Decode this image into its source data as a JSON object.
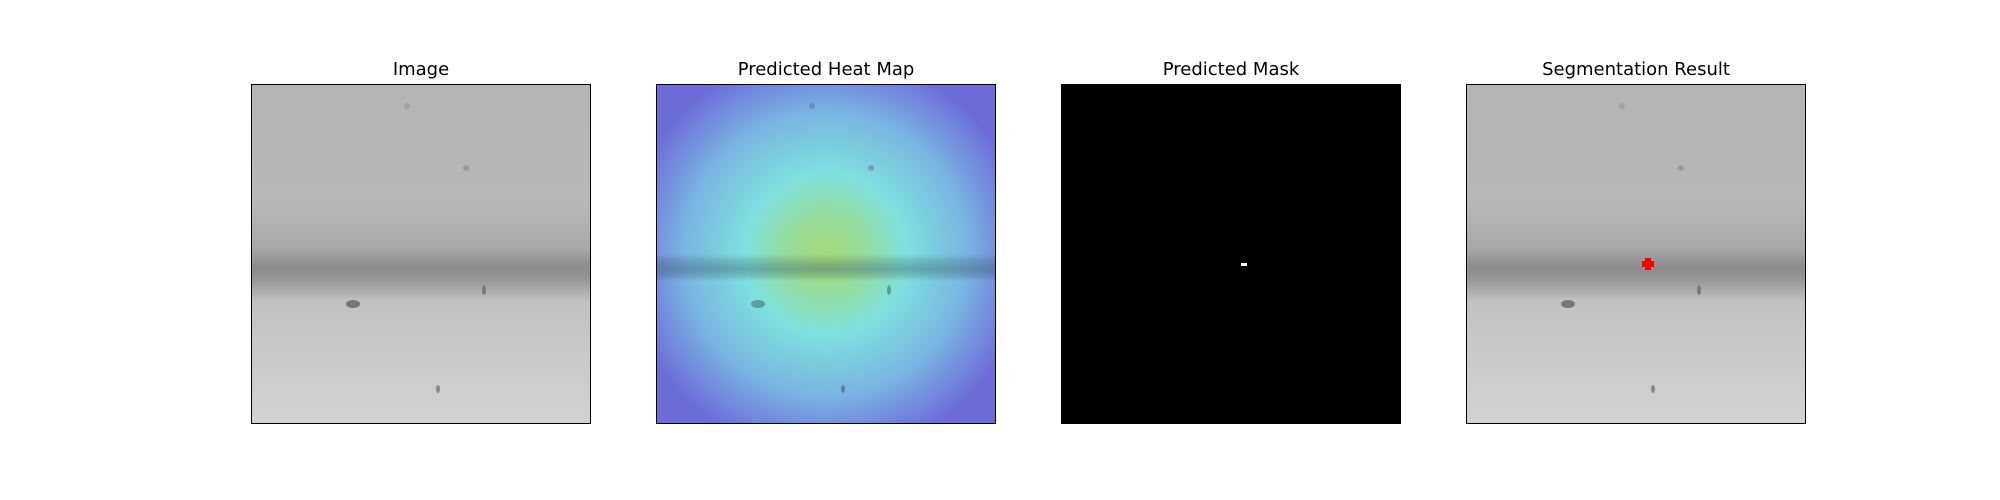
{
  "figure": {
    "panels": [
      {
        "id": "image",
        "title": "Image"
      },
      {
        "id": "heatmap",
        "title": "Predicted Heat Map"
      },
      {
        "id": "mask",
        "title": "Predicted Mask"
      },
      {
        "id": "result",
        "title": "Segmentation Result"
      }
    ],
    "colors": {
      "background": "#ffffff",
      "mask_background": "#000000",
      "mask_foreground": "#ffffff",
      "segmentation_overlay": "#ff0000",
      "heatmap_cold": "#6a6ad8",
      "heatmap_mid": "#7fe3e0",
      "heatmap_hot": "#a8d878"
    }
  }
}
